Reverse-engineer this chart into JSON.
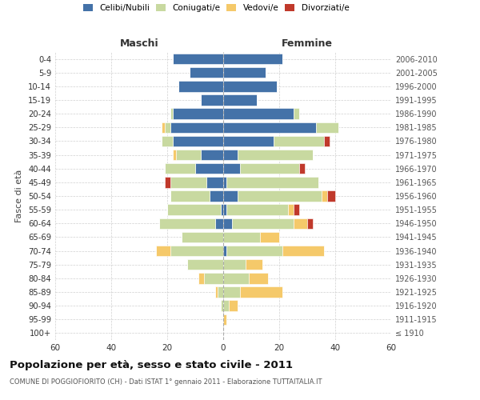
{
  "age_groups": [
    "100+",
    "95-99",
    "90-94",
    "85-89",
    "80-84",
    "75-79",
    "70-74",
    "65-69",
    "60-64",
    "55-59",
    "50-54",
    "45-49",
    "40-44",
    "35-39",
    "30-34",
    "25-29",
    "20-24",
    "15-19",
    "10-14",
    "5-9",
    "0-4"
  ],
  "birth_years": [
    "≤ 1910",
    "1911-1915",
    "1916-1920",
    "1921-1925",
    "1926-1930",
    "1931-1935",
    "1936-1940",
    "1941-1945",
    "1946-1950",
    "1951-1955",
    "1956-1960",
    "1961-1965",
    "1966-1970",
    "1971-1975",
    "1976-1980",
    "1981-1985",
    "1986-1990",
    "1991-1995",
    "1996-2000",
    "2001-2005",
    "2006-2010"
  ],
  "males": {
    "celibi": [
      0,
      0,
      0,
      0,
      0,
      0,
      0,
      0,
      3,
      1,
      5,
      6,
      10,
      8,
      18,
      19,
      18,
      8,
      16,
      12,
      18
    ],
    "coniugati": [
      0,
      0,
      1,
      2,
      7,
      13,
      19,
      15,
      20,
      19,
      14,
      13,
      11,
      9,
      4,
      2,
      1,
      0,
      0,
      0,
      0
    ],
    "vedovi": [
      0,
      0,
      0,
      1,
      2,
      0,
      5,
      0,
      0,
      0,
      0,
      0,
      0,
      1,
      0,
      1,
      0,
      0,
      0,
      0,
      0
    ],
    "divorziati": [
      0,
      0,
      0,
      0,
      0,
      0,
      0,
      0,
      0,
      0,
      0,
      2,
      0,
      0,
      0,
      0,
      0,
      0,
      0,
      0,
      0
    ]
  },
  "females": {
    "nubili": [
      0,
      0,
      0,
      0,
      0,
      0,
      1,
      0,
      3,
      1,
      5,
      1,
      6,
      5,
      18,
      33,
      25,
      12,
      19,
      15,
      21
    ],
    "coniugate": [
      0,
      0,
      2,
      6,
      9,
      8,
      20,
      13,
      22,
      22,
      30,
      33,
      21,
      27,
      18,
      8,
      2,
      0,
      0,
      0,
      0
    ],
    "vedove": [
      0,
      1,
      3,
      15,
      7,
      6,
      15,
      7,
      5,
      2,
      2,
      0,
      0,
      0,
      0,
      0,
      0,
      0,
      0,
      0,
      0
    ],
    "divorziate": [
      0,
      0,
      0,
      0,
      0,
      0,
      0,
      0,
      2,
      2,
      3,
      0,
      2,
      0,
      2,
      0,
      0,
      0,
      0,
      0,
      0
    ]
  },
  "colors": {
    "celibi_nubili": "#4472a8",
    "coniugati_e": "#c8d9a0",
    "vedovi_e": "#f5c96a",
    "divorziati_e": "#c0392b"
  },
  "xlim": 60,
  "title": "Popolazione per età, sesso e stato civile - 2011",
  "subtitle": "COMUNE DI POGGIOFIORITO (CH) - Dati ISTAT 1° gennaio 2011 - Elaborazione TUTTAITALIA.IT",
  "ylabel_left": "Fasce di età",
  "xlabel_left": "Maschi",
  "xlabel_right": "Femmine",
  "bg_color": "#ffffff",
  "grid_color": "#cccccc",
  "legend_labels": [
    "Celibi/Nubili",
    "Coniugati/e",
    "Vedovi/e",
    "Divorziati/e"
  ]
}
